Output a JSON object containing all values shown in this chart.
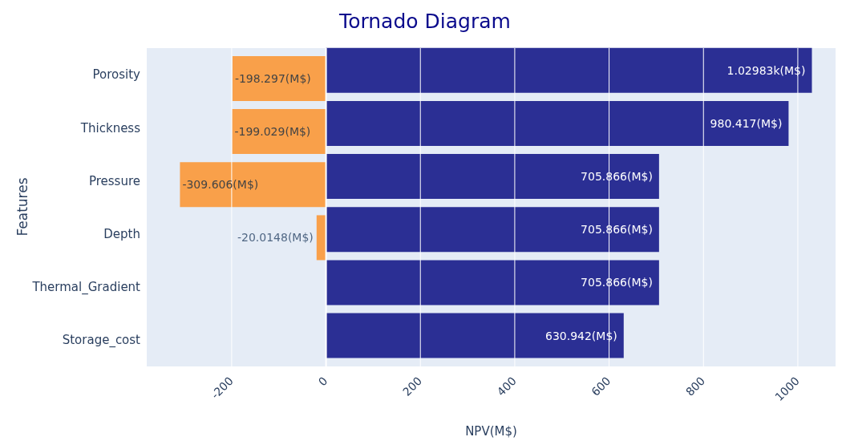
{
  "chart_data": {
    "type": "bar",
    "orientation": "horizontal",
    "title": "Tornado Diagram",
    "xlabel": "NPV(M$)",
    "ylabel": "Features",
    "categories": [
      "Porosity",
      "Thickness",
      "Pressure",
      "Depth",
      "Thermal_Gradient",
      "Storage_cost"
    ],
    "series": [
      {
        "color": "#f9a04a",
        "values": [
          -198.297,
          -199.029,
          -309.606,
          -20.0148,
          null,
          null
        ],
        "value_labels": [
          "-198.297(M$)",
          "-199.029(M$)",
          "-309.606(M$)",
          "-20.0148(M$)",
          null,
          null
        ]
      },
      {
        "color": "#2b2f94",
        "values": [
          1029.83,
          980.417,
          705.866,
          705.866,
          705.866,
          630.942
        ],
        "value_labels": [
          "1.02983k(M$)",
          "980.417(M$)",
          "705.866(M$)",
          "705.866(M$)",
          "705.866(M$)",
          "630.942(M$)"
        ]
      }
    ],
    "xlim": [
      -380,
      1080
    ],
    "xticks": [
      -200,
      0,
      200,
      400,
      600,
      800,
      1000
    ],
    "grid": "x"
  }
}
